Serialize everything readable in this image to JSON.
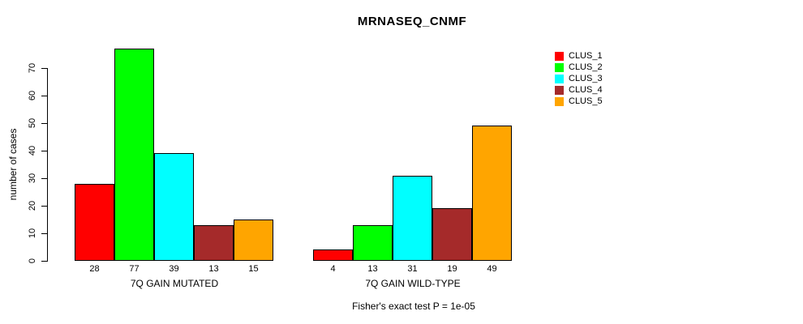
{
  "title": "MRNASEQ_CNMF",
  "footnote": "Fisher's exact test P = 1e-05",
  "y_axis": {
    "label": "number of cases",
    "ticks": [
      0,
      10,
      20,
      30,
      40,
      50,
      60,
      70
    ]
  },
  "legend": {
    "entries": [
      {
        "label": "CLUS_1",
        "color": "#FF0000"
      },
      {
        "label": "CLUS_2",
        "color": "#00FF00"
      },
      {
        "label": "CLUS_3",
        "color": "#00FFFF"
      },
      {
        "label": "CLUS_4",
        "color": "#A52A2A"
      },
      {
        "label": "CLUS_5",
        "color": "#FFA500"
      }
    ]
  },
  "chart_data": {
    "type": "bar",
    "title": "MRNASEQ_CNMF",
    "xlabel": "",
    "ylabel": "number of cases",
    "ylim": [
      0,
      77
    ],
    "yticks": [
      0,
      10,
      20,
      30,
      40,
      50,
      60,
      70
    ],
    "grid": false,
    "legend_position": "right-outside",
    "series_labels": [
      "CLUS_1",
      "CLUS_2",
      "CLUS_3",
      "CLUS_4",
      "CLUS_5"
    ],
    "colors": [
      "#FF0000",
      "#00FF00",
      "#00FFFF",
      "#A52A2A",
      "#FFA500"
    ],
    "groups": [
      {
        "label": "7Q GAIN MUTATED",
        "values": [
          28,
          77,
          39,
          13,
          15
        ]
      },
      {
        "label": "7Q GAIN WILD-TYPE",
        "values": [
          4,
          13,
          31,
          19,
          49
        ]
      }
    ],
    "bar_value_labels_shown": true,
    "annotation": "Fisher's exact test P = 1e-05"
  }
}
